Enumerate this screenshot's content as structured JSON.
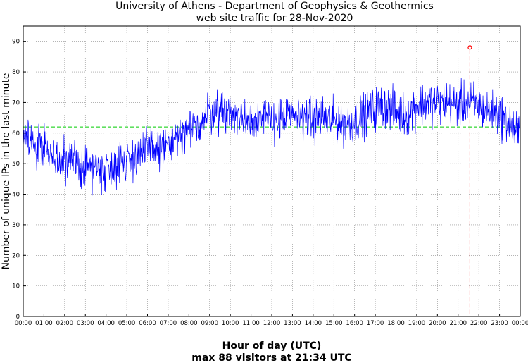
{
  "chart_data": {
    "type": "line",
    "title": "University of Athens - Department of Geophysics & Geothermics",
    "subtitle": "web site traffic for 28-Nov-2020",
    "xlabel": "Hour of day (UTC)",
    "ylabel": "Number of unique IPs in the last minute",
    "footnote": "max 88 visitors at 21:34 UTC",
    "xlim": [
      0,
      24
    ],
    "ylim": [
      0,
      95
    ],
    "grid": true,
    "x_ticks": [
      "00:00",
      "01:00",
      "02:00",
      "03:00",
      "04:00",
      "05:00",
      "06:00",
      "07:00",
      "08:00",
      "09:00",
      "10:00",
      "11:00",
      "12:00",
      "13:00",
      "14:00",
      "15:00",
      "16:00",
      "17:00",
      "18:00",
      "19:00",
      "20:00",
      "21:00",
      "22:00",
      "23:00",
      "00:00"
    ],
    "y_ticks": [
      0,
      10,
      20,
      30,
      40,
      50,
      60,
      70,
      80,
      90
    ],
    "series": [
      {
        "color": "#0000ff",
        "x_hours": [
          0,
          0.5,
          1,
          1.5,
          2,
          2.5,
          3,
          3.5,
          4,
          4.5,
          5,
          5.5,
          6,
          6.5,
          7,
          7.5,
          8,
          8.5,
          9,
          9.5,
          10,
          10.5,
          11,
          11.5,
          12,
          12.5,
          13,
          13.5,
          14,
          14.5,
          15,
          15.5,
          16,
          16.5,
          17,
          17.5,
          18,
          18.5,
          19,
          19.5,
          20,
          20.5,
          21,
          21.5,
          22,
          22.5,
          23,
          23.5,
          24
        ],
        "values": [
          59,
          57,
          55,
          52,
          50,
          50,
          49,
          49,
          48,
          50,
          51,
          53,
          55,
          55,
          56,
          58,
          60,
          63,
          67,
          68,
          66,
          65,
          65,
          65,
          64,
          65,
          65,
          66,
          64,
          65,
          64,
          63,
          64,
          66,
          68,
          69,
          67,
          66,
          69,
          70,
          70,
          70,
          69,
          70,
          69,
          67,
          66,
          63,
          59
        ]
      }
    ],
    "reference_lines": [
      {
        "type": "horizontal",
        "y": 62,
        "color": "#00cc00",
        "style": "dashed"
      },
      {
        "type": "vertical",
        "x_hours": 21.567,
        "color": "#ff0000",
        "style": "dashed"
      }
    ],
    "max_point": {
      "time": "21:34",
      "x_hours": 21.567,
      "y": 88,
      "color": "#ff0000"
    }
  }
}
